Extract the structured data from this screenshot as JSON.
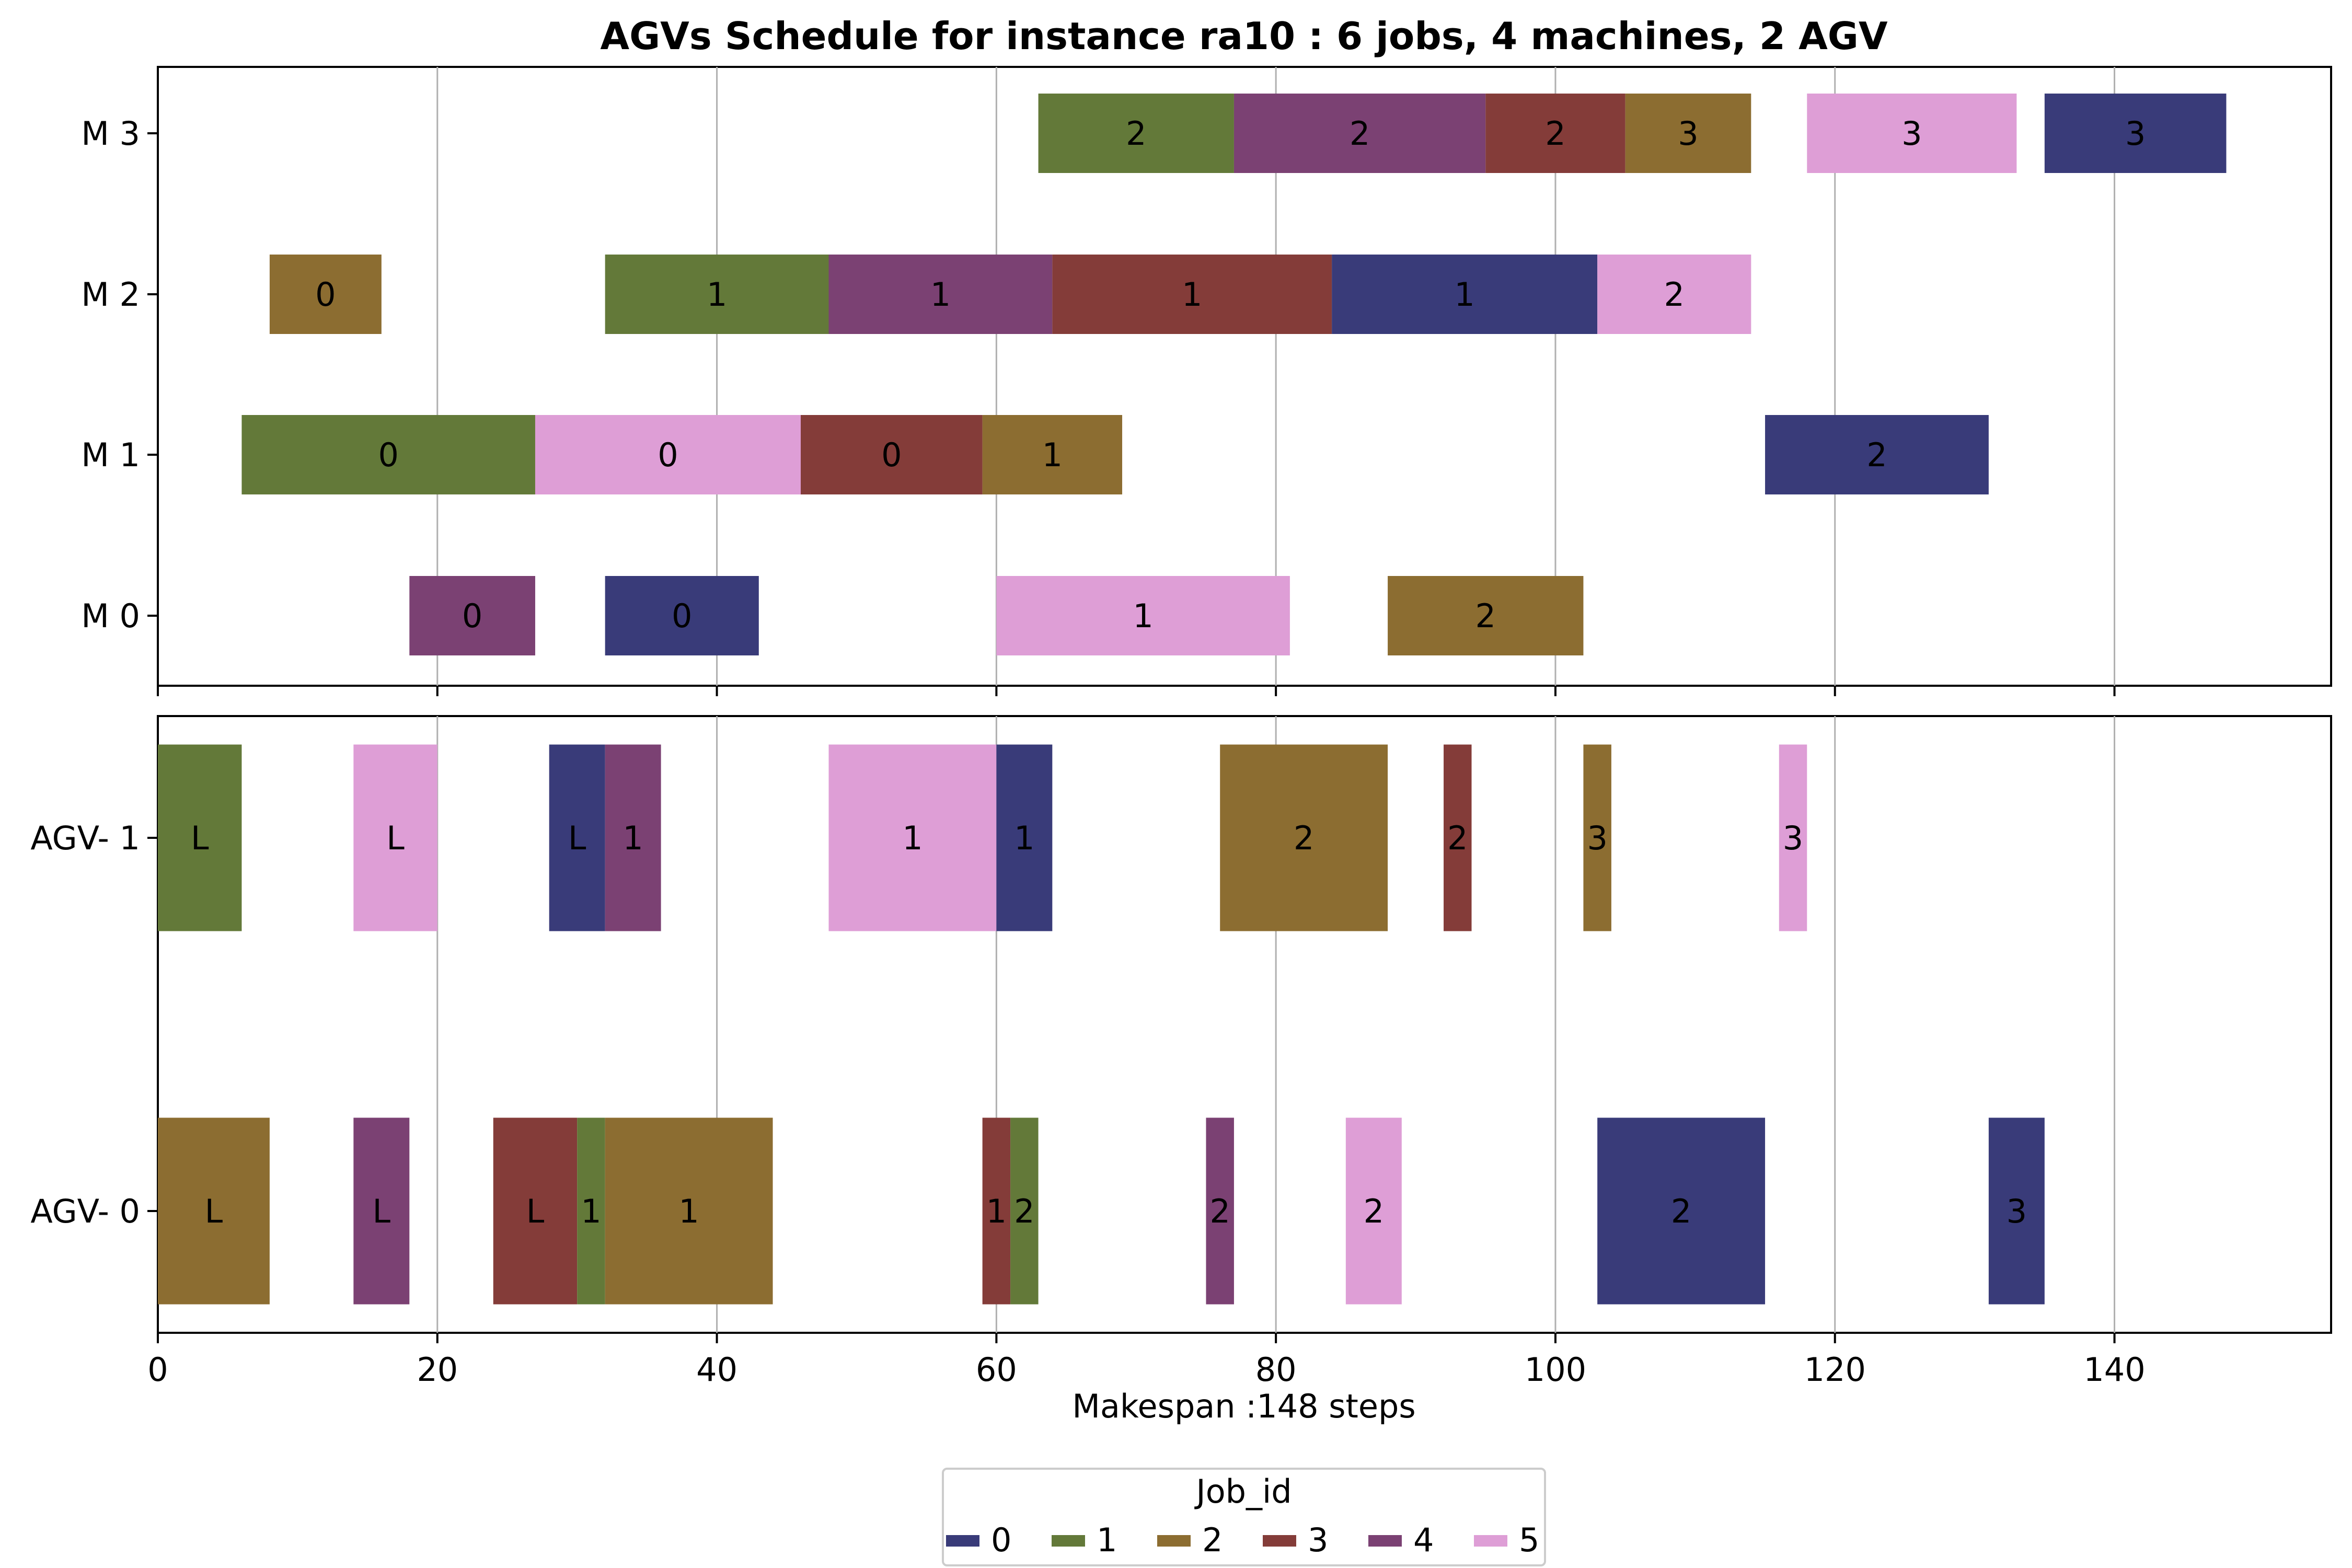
{
  "chart_data": {
    "type": "gantt",
    "title": "AGVs Schedule for instance ra10  : 6 jobs, 4 machines, 2 AGV",
    "xlabel": "Makespan :148 steps",
    "xlim": [
      0,
      155.5
    ],
    "xticks": [
      0,
      20,
      40,
      60,
      80,
      100,
      120,
      140
    ],
    "grid": true,
    "legend": {
      "title": "Job_id",
      "placement": "bottom-center",
      "entries": [
        {
          "label": "0",
          "job": 0
        },
        {
          "label": "1",
          "job": 1
        },
        {
          "label": "2",
          "job": 2
        },
        {
          "label": "3",
          "job": 3
        },
        {
          "label": "4",
          "job": 4
        },
        {
          "label": "5",
          "job": 5
        }
      ]
    },
    "job_colors": {
      "0": "#393b79",
      "1": "#637939",
      "2": "#8c6d31",
      "3": "#843c39",
      "4": "#7b4173",
      "5": "#de9ed6"
    },
    "machine_panel": {
      "rows": [
        "M 0",
        "M 1",
        "M 2",
        "M 3"
      ],
      "tasks": [
        {
          "row": "M 3",
          "job": 1,
          "start": 63,
          "end": 77,
          "label": "2"
        },
        {
          "row": "M 3",
          "job": 4,
          "start": 77,
          "end": 95,
          "label": "2"
        },
        {
          "row": "M 3",
          "job": 3,
          "start": 95,
          "end": 105,
          "label": "2"
        },
        {
          "row": "M 3",
          "job": 2,
          "start": 105,
          "end": 114,
          "label": "3"
        },
        {
          "row": "M 3",
          "job": 5,
          "start": 118,
          "end": 133,
          "label": "3"
        },
        {
          "row": "M 3",
          "job": 0,
          "start": 135,
          "end": 148,
          "label": "3"
        },
        {
          "row": "M 2",
          "job": 2,
          "start": 8,
          "end": 16,
          "label": "0"
        },
        {
          "row": "M 2",
          "job": 1,
          "start": 32,
          "end": 48,
          "label": "1"
        },
        {
          "row": "M 2",
          "job": 4,
          "start": 48,
          "end": 64,
          "label": "1"
        },
        {
          "row": "M 2",
          "job": 3,
          "start": 64,
          "end": 84,
          "label": "1"
        },
        {
          "row": "M 2",
          "job": 0,
          "start": 84,
          "end": 103,
          "label": "1"
        },
        {
          "row": "M 2",
          "job": 5,
          "start": 103,
          "end": 114,
          "label": "2"
        },
        {
          "row": "M 1",
          "job": 1,
          "start": 6,
          "end": 27,
          "label": "0"
        },
        {
          "row": "M 1",
          "job": 5,
          "start": 27,
          "end": 46,
          "label": "0"
        },
        {
          "row": "M 1",
          "job": 3,
          "start": 46,
          "end": 59,
          "label": "0"
        },
        {
          "row": "M 1",
          "job": 2,
          "start": 59,
          "end": 69,
          "label": "1"
        },
        {
          "row": "M 1",
          "job": 0,
          "start": 115,
          "end": 131,
          "label": "2"
        },
        {
          "row": "M 0",
          "job": 4,
          "start": 18,
          "end": 27,
          "label": "0"
        },
        {
          "row": "M 0",
          "job": 0,
          "start": 32,
          "end": 43,
          "label": "0"
        },
        {
          "row": "M 0",
          "job": 5,
          "start": 60,
          "end": 81,
          "label": "1"
        },
        {
          "row": "M 0",
          "job": 2,
          "start": 88,
          "end": 102,
          "label": "2"
        }
      ]
    },
    "agv_panel": {
      "rows": [
        "AGV- 0",
        "AGV- 1"
      ],
      "tasks": [
        {
          "row": "AGV- 1",
          "job": 1,
          "start": 0,
          "end": 6,
          "label": "L"
        },
        {
          "row": "AGV- 1",
          "job": 5,
          "start": 14,
          "end": 20,
          "label": "L"
        },
        {
          "row": "AGV- 1",
          "job": 0,
          "start": 28,
          "end": 32,
          "label": "L"
        },
        {
          "row": "AGV- 1",
          "job": 4,
          "start": 32,
          "end": 36,
          "label": "1"
        },
        {
          "row": "AGV- 1",
          "job": 5,
          "start": 48,
          "end": 60,
          "label": "1"
        },
        {
          "row": "AGV- 1",
          "job": 0,
          "start": 60,
          "end": 64,
          "label": "1"
        },
        {
          "row": "AGV- 1",
          "job": 2,
          "start": 76,
          "end": 88,
          "label": "2"
        },
        {
          "row": "AGV- 1",
          "job": 3,
          "start": 92,
          "end": 94,
          "label": "2"
        },
        {
          "row": "AGV- 1",
          "job": 2,
          "start": 102,
          "end": 104,
          "label": "3"
        },
        {
          "row": "AGV- 1",
          "job": 5,
          "start": 116,
          "end": 118,
          "label": "3"
        },
        {
          "row": "AGV- 0",
          "job": 2,
          "start": 0,
          "end": 8,
          "label": "L"
        },
        {
          "row": "AGV- 0",
          "job": 4,
          "start": 14,
          "end": 18,
          "label": "L"
        },
        {
          "row": "AGV- 0",
          "job": 3,
          "start": 24,
          "end": 30,
          "label": "L"
        },
        {
          "row": "AGV- 0",
          "job": 1,
          "start": 30,
          "end": 32,
          "label": "1"
        },
        {
          "row": "AGV- 0",
          "job": 2,
          "start": 32,
          "end": 44,
          "label": "1"
        },
        {
          "row": "AGV- 0",
          "job": 3,
          "start": 59,
          "end": 61,
          "label": "1"
        },
        {
          "row": "AGV- 0",
          "job": 1,
          "start": 61,
          "end": 63,
          "label": "2"
        },
        {
          "row": "AGV- 0",
          "job": 4,
          "start": 75,
          "end": 77,
          "label": "2"
        },
        {
          "row": "AGV- 0",
          "job": 5,
          "start": 85,
          "end": 89,
          "label": "2"
        },
        {
          "row": "AGV- 0",
          "job": 0,
          "start": 103,
          "end": 115,
          "label": "2"
        },
        {
          "row": "AGV- 0",
          "job": 0,
          "start": 131,
          "end": 135,
          "label": "3"
        }
      ]
    }
  }
}
